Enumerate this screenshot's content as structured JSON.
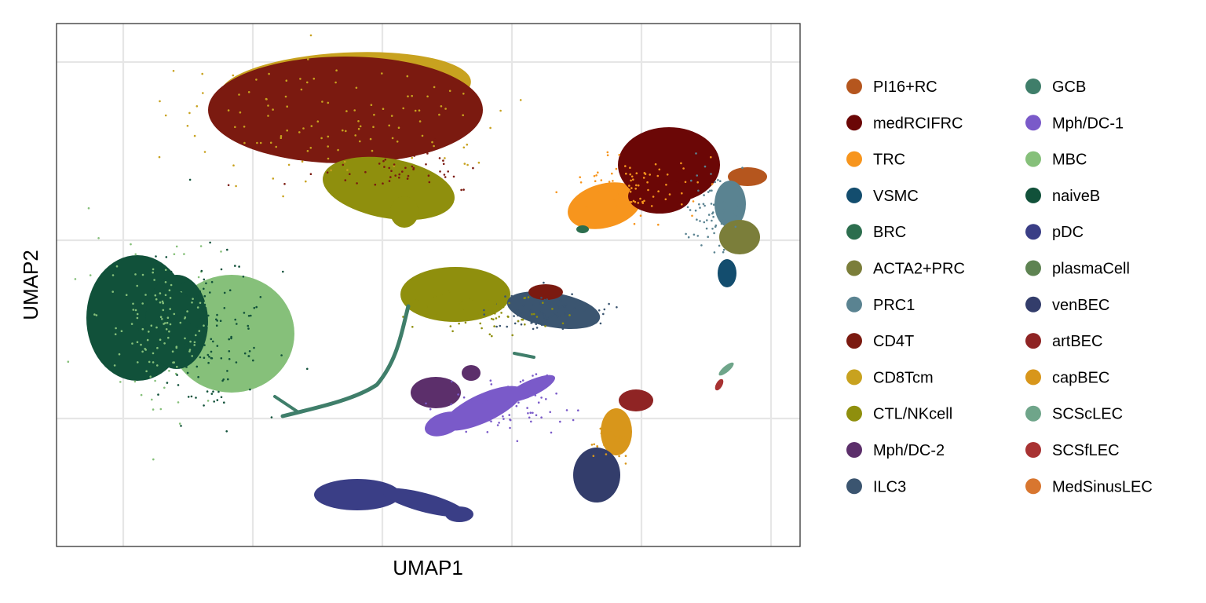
{
  "chart_data": {
    "type": "scatter",
    "title": "",
    "xlabel": "UMAP1",
    "ylabel": "UMAP2",
    "x_ticks_labeled": false,
    "y_ticks_labeled": false,
    "grid": true,
    "legend_position": "right",
    "legend_columns": 2,
    "series": [
      {
        "name": "PI16+RC",
        "color": "#B5561E"
      },
      {
        "name": "medRCIFRC",
        "color": "#6B0706"
      },
      {
        "name": "TRC",
        "color": "#F7951D"
      },
      {
        "name": "VSMC",
        "color": "#134D6E"
      },
      {
        "name": "BRC",
        "color": "#2C6E4E"
      },
      {
        "name": "ACTA2+PRC",
        "color": "#7B7E3A"
      },
      {
        "name": "PRC1",
        "color": "#5A8391"
      },
      {
        "name": "CD4T",
        "color": "#7B1A10"
      },
      {
        "name": "CD8Tcm",
        "color": "#C8A21F"
      },
      {
        "name": "CTL/NKcell",
        "color": "#8F8F0D"
      },
      {
        "name": "Mph/DC-2",
        "color": "#5C2F6B"
      },
      {
        "name": "ILC3",
        "color": "#3B5570"
      },
      {
        "name": "GCB",
        "color": "#3F7E6A"
      },
      {
        "name": "Mph/DC-1",
        "color": "#7A5AC9"
      },
      {
        "name": "MBC",
        "color": "#86C07A"
      },
      {
        "name": "naiveB",
        "color": "#11513A"
      },
      {
        "name": "pDC",
        "color": "#3A3E86"
      },
      {
        "name": "plasmaCell",
        "color": "#5E8352"
      },
      {
        "name": "venBEC",
        "color": "#333D6B"
      },
      {
        "name": "artBEC",
        "color": "#8F2424"
      },
      {
        "name": "capBEC",
        "color": "#D8961B"
      },
      {
        "name": "SCScLEC",
        "color": "#6FA58A"
      },
      {
        "name": "SCSfLEC",
        "color": "#A83232"
      },
      {
        "name": "MedSinusLEC",
        "color": "#D8762F"
      }
    ]
  }
}
